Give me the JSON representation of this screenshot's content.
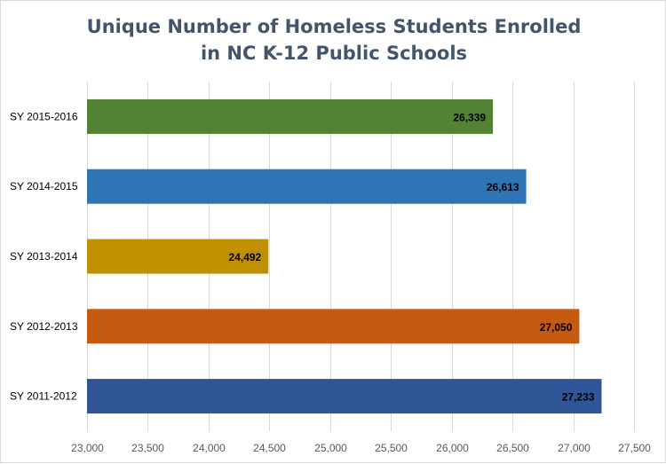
{
  "chart_data": {
    "type": "bar",
    "orientation": "horizontal",
    "title_lines": [
      "Unique Number of Homeless Students Enrolled",
      "in NC K-12 Public Schools"
    ],
    "categories": [
      "SY 2015-2016",
      "SY 2014-2015",
      "SY 2013-2014",
      "SY 2012-2013",
      "SY 2011-2012"
    ],
    "values": [
      26339,
      26613,
      24492,
      27050,
      27233
    ],
    "data_labels": [
      "26,339",
      "26,613",
      "24,492",
      "27,050",
      "27,233"
    ],
    "bar_colors": [
      "#548235",
      "#2e75b6",
      "#bf9000",
      "#c55a11",
      "#2f5597"
    ],
    "xlim": [
      23000,
      27500
    ],
    "x_ticks": [
      23000,
      23500,
      24000,
      24500,
      25000,
      25500,
      26000,
      26500,
      27000,
      27500
    ],
    "x_tick_labels": [
      "23,000",
      "23,500",
      "24,000",
      "24,500",
      "25,000",
      "25,500",
      "26,000",
      "26,500",
      "27,000",
      "27,500"
    ],
    "grid": true,
    "legend": "none"
  }
}
